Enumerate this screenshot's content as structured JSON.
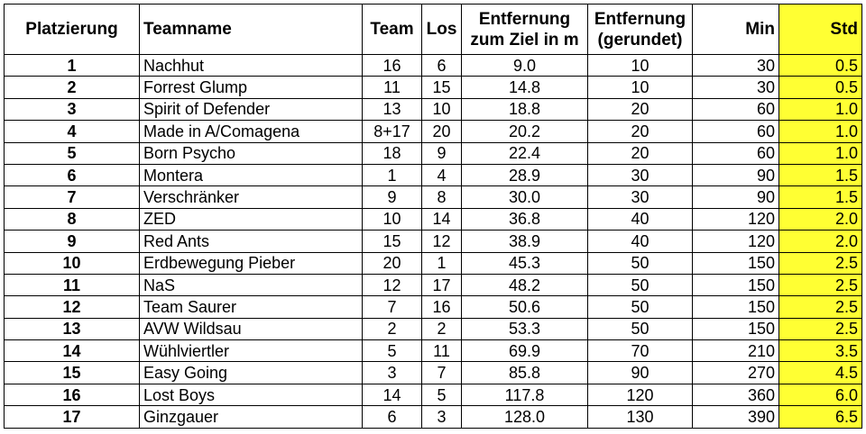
{
  "table": {
    "headers": {
      "rank": "Platzierung",
      "team_name": "Teamname",
      "team": "Team",
      "los": "Los",
      "distance_line1": "Entfernung",
      "distance_line2": "zum Ziel in m",
      "rounded_line1": "Entfernung",
      "rounded_line2": "(gerundet)",
      "min": "Min",
      "std": "Std"
    },
    "highlight_color": "#ffff33",
    "rows": [
      {
        "rank": "1",
        "name": "Nachhut",
        "team": "16",
        "los": "6",
        "distance": "9.0",
        "rounded": "10",
        "min": "30",
        "std": "0.5"
      },
      {
        "rank": "2",
        "name": "Forrest Glump",
        "team": "11",
        "los": "15",
        "distance": "14.8",
        "rounded": "10",
        "min": "30",
        "std": "0.5"
      },
      {
        "rank": "3",
        "name": "Spirit of Defender",
        "team": "13",
        "los": "10",
        "distance": "18.8",
        "rounded": "20",
        "min": "60",
        "std": "1.0"
      },
      {
        "rank": "4",
        "name": "Made in A/Comagena",
        "team": "8+17",
        "los": "20",
        "distance": "20.2",
        "rounded": "20",
        "min": "60",
        "std": "1.0"
      },
      {
        "rank": "5",
        "name": "Born Psycho",
        "team": "18",
        "los": "9",
        "distance": "22.4",
        "rounded": "20",
        "min": "60",
        "std": "1.0"
      },
      {
        "rank": "6",
        "name": "Montera",
        "team": "1",
        "los": "4",
        "distance": "28.9",
        "rounded": "30",
        "min": "90",
        "std": "1.5"
      },
      {
        "rank": "7",
        "name": "Verschränker",
        "team": "9",
        "los": "8",
        "distance": "30.0",
        "rounded": "30",
        "min": "90",
        "std": "1.5"
      },
      {
        "rank": "8",
        "name": "ZED",
        "team": "10",
        "los": "14",
        "distance": "36.8",
        "rounded": "40",
        "min": "120",
        "std": "2.0"
      },
      {
        "rank": "9",
        "name": "Red Ants",
        "team": "15",
        "los": "12",
        "distance": "38.9",
        "rounded": "40",
        "min": "120",
        "std": "2.0"
      },
      {
        "rank": "10",
        "name": "Erdbewegung Pieber",
        "team": "20",
        "los": "1",
        "distance": "45.3",
        "rounded": "50",
        "min": "150",
        "std": "2.5"
      },
      {
        "rank": "11",
        "name": "NaS",
        "team": "12",
        "los": "17",
        "distance": "48.2",
        "rounded": "50",
        "min": "150",
        "std": "2.5"
      },
      {
        "rank": "12",
        "name": "Team Saurer",
        "team": "7",
        "los": "16",
        "distance": "50.6",
        "rounded": "50",
        "min": "150",
        "std": "2.5"
      },
      {
        "rank": "13",
        "name": "AVW Wildsau",
        "team": "2",
        "los": "2",
        "distance": "53.3",
        "rounded": "50",
        "min": "150",
        "std": "2.5"
      },
      {
        "rank": "14",
        "name": "Wühlviertler",
        "team": "5",
        "los": "11",
        "distance": "69.9",
        "rounded": "70",
        "min": "210",
        "std": "3.5"
      },
      {
        "rank": "15",
        "name": "Easy Going",
        "team": "3",
        "los": "7",
        "distance": "85.8",
        "rounded": "90",
        "min": "270",
        "std": "4.5"
      },
      {
        "rank": "16",
        "name": "Lost Boys",
        "team": "14",
        "los": "5",
        "distance": "117.8",
        "rounded": "120",
        "min": "360",
        "std": "6.0"
      },
      {
        "rank": "17",
        "name": "Ginzgauer",
        "team": "6",
        "los": "3",
        "distance": "128.0",
        "rounded": "130",
        "min": "390",
        "std": "6.5"
      }
    ]
  }
}
